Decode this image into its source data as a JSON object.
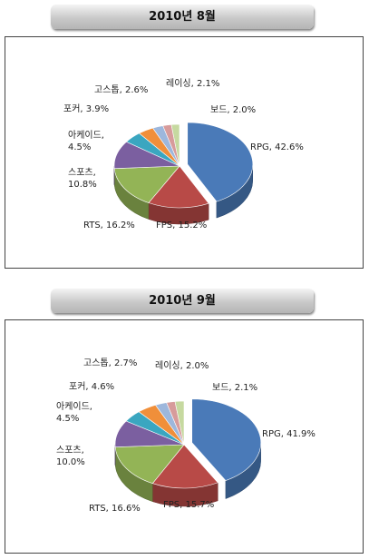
{
  "chart_data": [
    {
      "type": "pie",
      "title": "2010년 8월",
      "values": [
        42.6,
        15.2,
        16.2,
        10.8,
        4.5,
        3.9,
        2.6,
        2.1,
        2.0
      ],
      "value_labels": [
        "RPG, 42.6%",
        "FPS, 15.2%",
        "RTS, 16.2%",
        "스포츠, 10.8%",
        "아케이드, 4.5%",
        "포커, 3.9%",
        "고스톱, 2.6%",
        "레이싱, 2.1%",
        "보드, 2.0%"
      ],
      "colors": [
        "#4a7ab8",
        "#b84a47",
        "#93b456",
        "#7b5fa0",
        "#3aa6c0",
        "#f08f3a",
        "#9db7dc",
        "#d79b9b",
        "#c6d9a0"
      ]
    },
    {
      "type": "pie",
      "title": "2010년 9월",
      "values": [
        41.9,
        15.7,
        16.6,
        10.0,
        4.5,
        4.6,
        2.7,
        2.0,
        2.1
      ],
      "value_labels": [
        "RPG, 41.9%",
        "FPS, 15.7%",
        "RTS, 16.6%",
        "스포츠, 10.0%",
        "아케이드, 4.5%",
        "포커, 4.6%",
        "고스톱, 2.7%",
        "레이싱, 2.0%",
        "보드, 2.1%"
      ],
      "colors": [
        "#4a7ab8",
        "#b84a47",
        "#93b456",
        "#7b5fa0",
        "#3aa6c0",
        "#f08f3a",
        "#9db7dc",
        "#d79b9b",
        "#c6d9a0"
      ]
    }
  ]
}
